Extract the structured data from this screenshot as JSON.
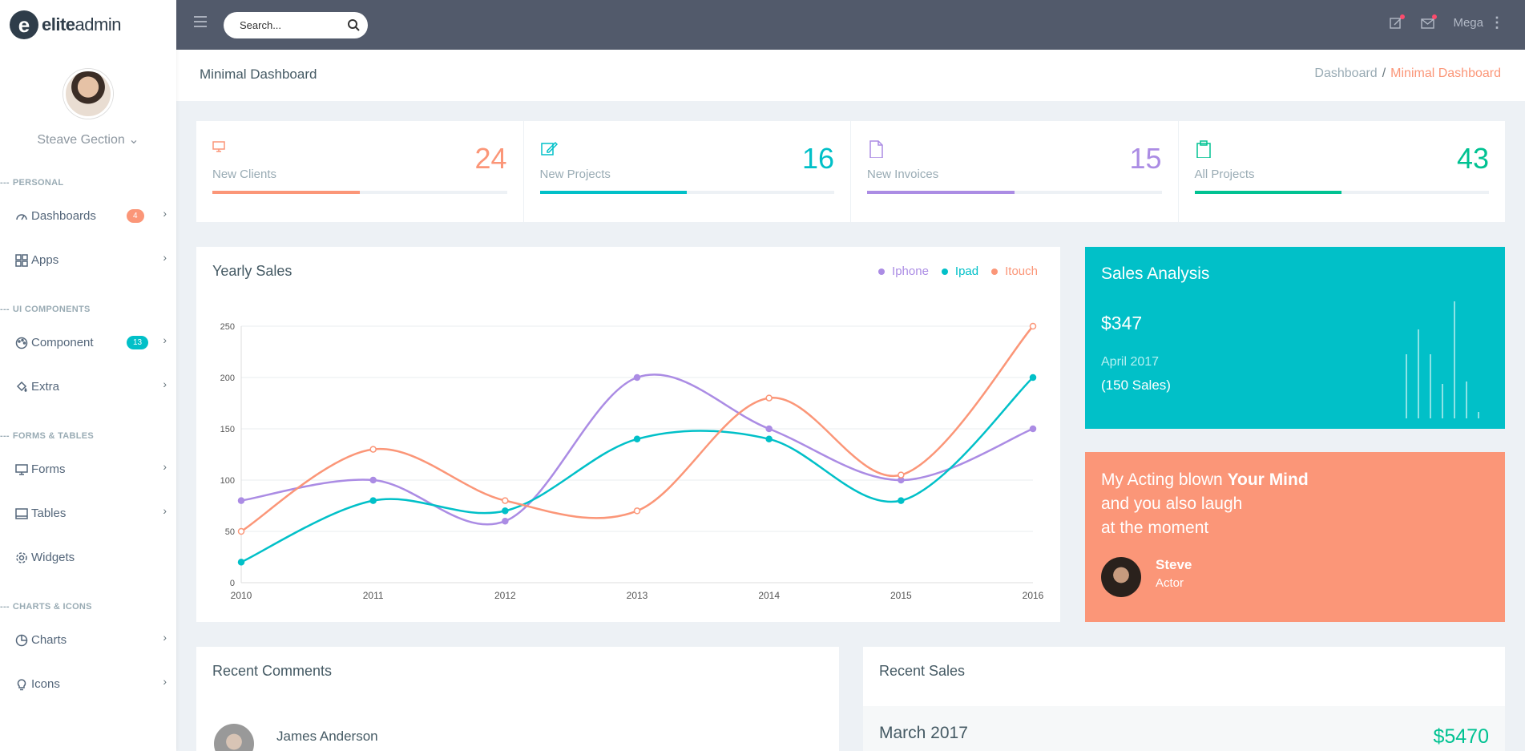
{
  "brand": {
    "name_bold": "elite",
    "name_light": "admin",
    "logo_letter": "e"
  },
  "user": {
    "name": "Steave Gection",
    "caret": "⌄"
  },
  "nav": {
    "sections": [
      {
        "caption": "PERSONAL",
        "items": [
          {
            "label": "Dashboards",
            "icon": "gauge-icon",
            "badge": "4",
            "badge_color": "#fb9678",
            "chevron": true
          },
          {
            "label": "Apps",
            "icon": "grid-icon",
            "badge": null,
            "chevron": true
          }
        ]
      },
      {
        "caption": "UI COMPONENTS",
        "items": [
          {
            "label": "Component",
            "icon": "palette-icon",
            "badge": "13",
            "badge_color": "#01c0c8",
            "chevron": true
          },
          {
            "label": "Extra",
            "icon": "paint-bucket-icon",
            "badge": null,
            "chevron": true
          }
        ]
      },
      {
        "caption": "FORMS & TABLES",
        "items": [
          {
            "label": "Forms",
            "icon": "monitor-icon",
            "badge": null,
            "chevron": true
          },
          {
            "label": "Tables",
            "icon": "table-icon",
            "badge": null,
            "chevron": true
          },
          {
            "label": "Widgets",
            "icon": "gear-icon",
            "badge": null,
            "chevron": false
          }
        ]
      },
      {
        "caption": "CHARTS & ICONS",
        "items": [
          {
            "label": "Charts",
            "icon": "pie-chart-icon",
            "badge": null,
            "chevron": true
          },
          {
            "label": "Icons",
            "icon": "lightbulb-icon",
            "badge": null,
            "chevron": true
          }
        ]
      }
    ]
  },
  "topbar": {
    "search_placeholder": "Search...",
    "mega_label": "Mega"
  },
  "page": {
    "title": "Minimal Dashboard",
    "breadcrumb": [
      "Dashboard",
      "Minimal Dashboard"
    ]
  },
  "stats": [
    {
      "label": "New Clients",
      "value": "24",
      "color": "#fb9678",
      "icon": "monitor-icon",
      "progress": 0.5
    },
    {
      "label": "New Projects",
      "value": "16",
      "color": "#01c0c8",
      "icon": "edit-icon",
      "progress": 0.5
    },
    {
      "label": "New Invoices",
      "value": "15",
      "color": "#ab8ce4",
      "icon": "file-icon",
      "progress": 0.5
    },
    {
      "label": "All Projects",
      "value": "43",
      "color": "#00c292",
      "icon": "clipboard-icon",
      "progress": 0.5
    }
  ],
  "yearly_sales": {
    "title": "Yearly Sales",
    "legend": [
      {
        "name": "Iphone",
        "color": "#ab8ce4"
      },
      {
        "name": "Ipad",
        "color": "#01c0c8"
      },
      {
        "name": "Itouch",
        "color": "#fb9678"
      }
    ]
  },
  "chart_data": {
    "type": "line",
    "title": "Yearly Sales",
    "x": [
      "2010",
      "2011",
      "2012",
      "2013",
      "2014",
      "2015",
      "2016"
    ],
    "ylim": [
      0,
      250
    ],
    "yticks": [
      0,
      50,
      100,
      150,
      200,
      250
    ],
    "grid": true,
    "legend_position": "top-right",
    "smooth": true,
    "series": [
      {
        "name": "Iphone",
        "color": "#ab8ce4",
        "values": [
          80,
          100,
          60,
          200,
          150,
          100,
          150
        ]
      },
      {
        "name": "Ipad",
        "color": "#01c0c8",
        "values": [
          20,
          80,
          70,
          140,
          140,
          80,
          200
        ]
      },
      {
        "name": "Itouch",
        "color": "#fb9678",
        "values": [
          50,
          130,
          80,
          70,
          180,
          105,
          250
        ]
      }
    ]
  },
  "sales_analysis": {
    "title": "Sales Analysis",
    "amount": "$347",
    "date": "April 2017",
    "count": "(150 Sales)",
    "spark_values": [
      0.52,
      0.72,
      0.52,
      0.28,
      0.95,
      0.3,
      0.05
    ]
  },
  "quote": {
    "line1_start": "My Acting blown ",
    "line1_bold": "Your Mind",
    "line2": "and you also laugh",
    "line3": "at the moment",
    "author": "Steve",
    "role": "Actor"
  },
  "recent_comments": {
    "title": "Recent Comments",
    "first_name": "James Anderson"
  },
  "recent_sales": {
    "title": "Recent Sales",
    "month": "March 2017",
    "amount": "$5470"
  }
}
